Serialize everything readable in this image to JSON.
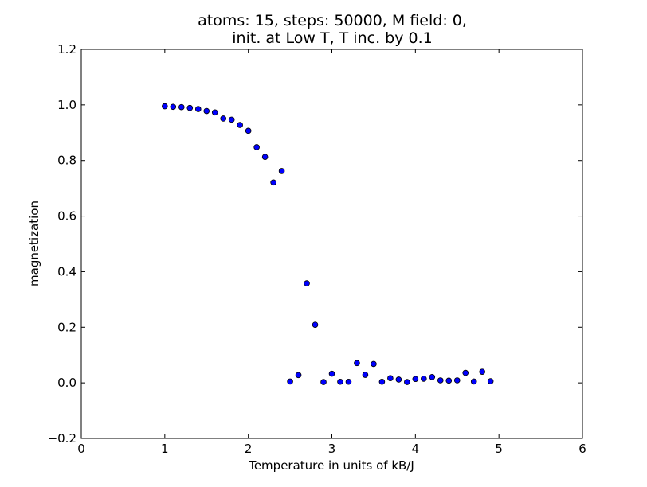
{
  "chart_data": {
    "type": "scatter",
    "title_line1": "atoms: 15, steps: 50000, M field: 0,",
    "title_line2": "init. at Low T, T inc. by 0.1",
    "xlabel": "Temperature in units of kB/J",
    "ylabel": "magnetization",
    "xlim": [
      0,
      6
    ],
    "ylim": [
      -0.2,
      1.2
    ],
    "xticks": [
      0,
      1,
      2,
      3,
      4,
      5,
      6
    ],
    "xtick_labels": [
      "0",
      "1",
      "2",
      "3",
      "4",
      "5",
      "6"
    ],
    "yticks": [
      -0.2,
      0.0,
      0.2,
      0.4,
      0.6,
      0.8,
      1.0,
      1.2
    ],
    "ytick_labels": [
      "−0.2",
      "0.0",
      "0.2",
      "0.4",
      "0.6",
      "0.8",
      "1.0",
      "1.2"
    ],
    "grid": false,
    "marker_color": "#0000ff",
    "series": [
      {
        "x": [
          1.0,
          1.1,
          1.2,
          1.3,
          1.4,
          1.5,
          1.6,
          1.7,
          1.8,
          1.9,
          2.0,
          2.1,
          2.2,
          2.3,
          2.4,
          2.5,
          2.6,
          2.7,
          2.8,
          2.9,
          3.0,
          3.1,
          3.2,
          3.3,
          3.4,
          3.5,
          3.6,
          3.7,
          3.8,
          3.9,
          4.0,
          4.1,
          4.2,
          4.3,
          4.4,
          4.5,
          4.6,
          4.7,
          4.8,
          4.9
        ],
        "y": [
          0.995,
          0.993,
          0.992,
          0.989,
          0.985,
          0.978,
          0.973,
          0.951,
          0.947,
          0.928,
          0.907,
          0.848,
          0.813,
          0.721,
          0.762,
          0.005,
          0.028,
          0.358,
          0.209,
          0.003,
          0.033,
          0.004,
          0.004,
          0.071,
          0.029,
          0.068,
          0.004,
          0.017,
          0.012,
          0.003,
          0.014,
          0.015,
          0.021,
          0.009,
          0.008,
          0.009,
          0.036,
          0.005,
          0.04,
          0.006
        ]
      }
    ]
  }
}
